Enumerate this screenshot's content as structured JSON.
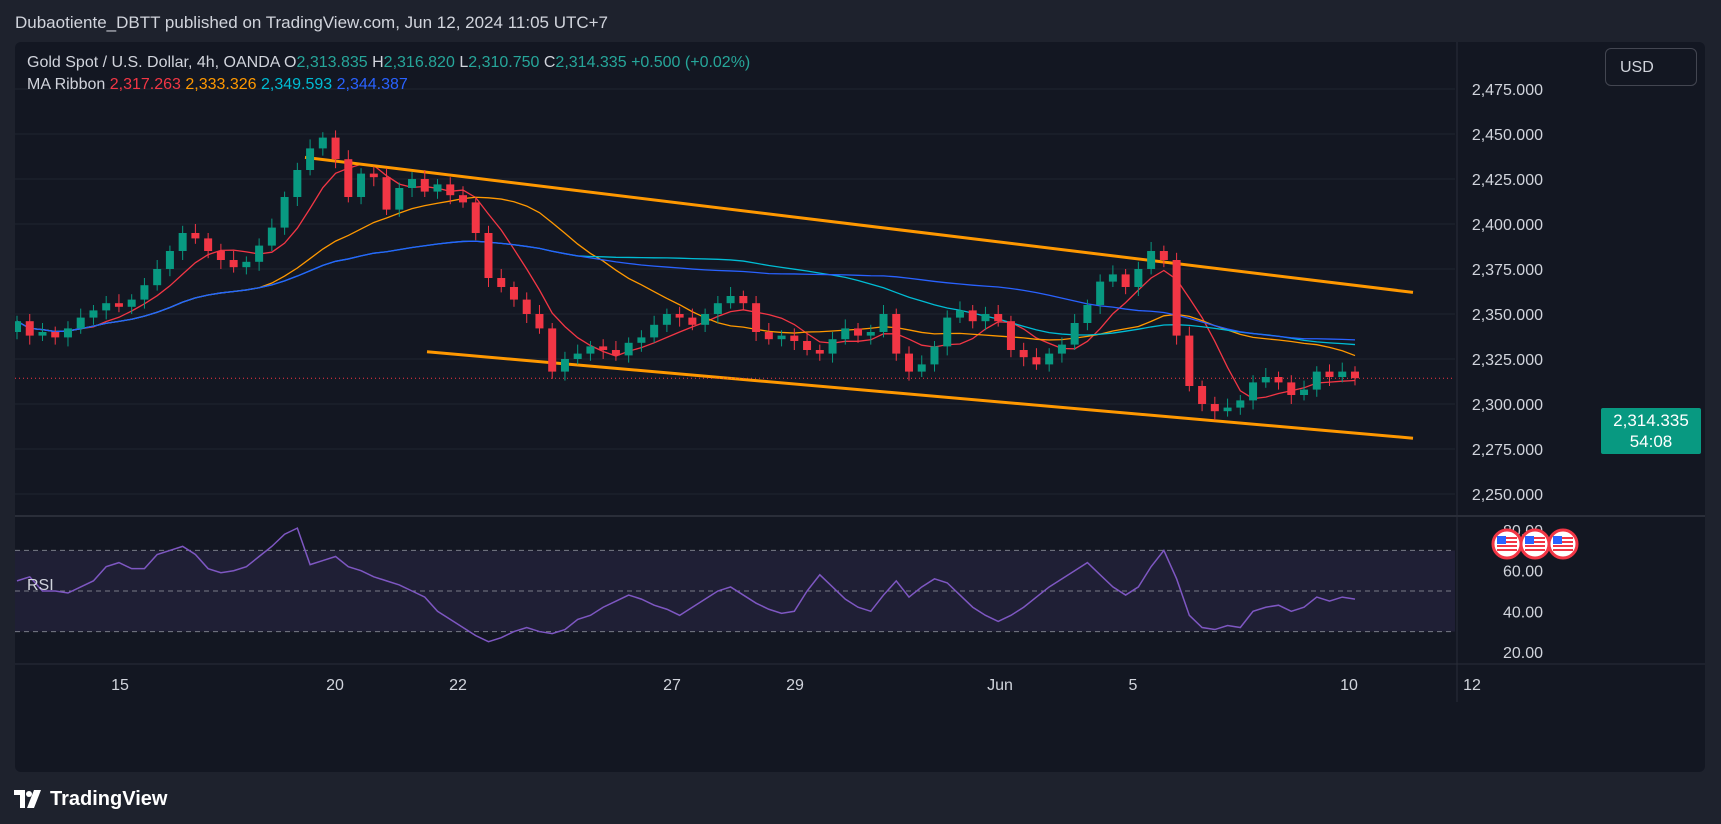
{
  "header": {
    "publisher_line": "Dubaotiente_DBTT published on TradingView.com, Jun 12, 2024 11:05 UTC+7"
  },
  "legend": {
    "symbol": "Gold Spot / U.S. Dollar, 4h, OANDA",
    "o_label": "O",
    "o_value": "2,313.835",
    "h_label": "H",
    "h_value": "2,316.820",
    "l_label": "L",
    "l_value": "2,310.750",
    "c_label": "C",
    "c_value": "2,314.335",
    "change": "+0.500 (+0.02%)",
    "ma_label": "MA Ribbon",
    "ma_values": [
      "2,317.263",
      "2,333.326",
      "2,349.593",
      "2,344.387"
    ]
  },
  "currency_button": "USD",
  "last_price": {
    "value": "2,314.335",
    "countdown": "54:08"
  },
  "rsi_label": "RSI",
  "footer": {
    "brand": "TradingView"
  },
  "colors": {
    "up": "#089981",
    "down": "#f23645",
    "ma1": "#f23645",
    "ma2": "#ff9800",
    "ma3": "#00bcd4",
    "ma4": "#2962ff",
    "trendline": "#ff9800",
    "rsi": "#7e57c2"
  },
  "icons": [
    "us-flag-event-icon",
    "us-flag-event-icon",
    "us-flag-event-icon",
    "tradingview-logo-icon"
  ],
  "chart_data": [
    {
      "type": "candlestick",
      "title": "Gold Spot / U.S. Dollar, 4h, OANDA",
      "x_tick_labels": [
        "15",
        "20",
        "22",
        "27",
        "29",
        "Jun",
        "5",
        "10",
        "12"
      ],
      "y_tick_labels": [
        "2,475.000",
        "2,450.000",
        "2,425.000",
        "2,400.000",
        "2,375.000",
        "2,350.000",
        "2,325.000",
        "2,300.000",
        "2,275.000",
        "2,250.000"
      ],
      "ylim": [
        2240,
        2490
      ],
      "candles_close": [
        2346,
        2338,
        2340,
        2337,
        2342,
        2348,
        2352,
        2356,
        2354,
        2358,
        2366,
        2375,
        2385,
        2395,
        2392,
        2385,
        2380,
        2376,
        2379,
        2388,
        2398,
        2415,
        2430,
        2442,
        2448,
        2436,
        2415,
        2428,
        2426,
        2408,
        2420,
        2425,
        2418,
        2422,
        2416,
        2412,
        2395,
        2370,
        2365,
        2358,
        2350,
        2342,
        2318,
        2325,
        2328,
        2332,
        2330,
        2327,
        2334,
        2337,
        2344,
        2350,
        2348,
        2344,
        2350,
        2356,
        2360,
        2356,
        2340,
        2336,
        2338,
        2335,
        2330,
        2328,
        2336,
        2342,
        2338,
        2340,
        2350,
        2328,
        2318,
        2322,
        2332,
        2348,
        2352,
        2346,
        2350,
        2346,
        2330,
        2326,
        2322,
        2328,
        2333,
        2345,
        2355,
        2368,
        2372,
        2365,
        2375,
        2385,
        2380,
        2338,
        2310,
        2300,
        2296,
        2298,
        2302,
        2312,
        2315,
        2312,
        2305,
        2308,
        2318,
        2315,
        2318,
        2314.335
      ],
      "ma_ribbon": [
        {
          "name": "MA 1",
          "last": 2317.263
        },
        {
          "name": "MA 2",
          "last": 2333.326
        },
        {
          "name": "MA 3",
          "last": 2349.593
        },
        {
          "name": "MA 4",
          "last": 2344.387
        }
      ],
      "trendlines": [
        {
          "name": "upper channel",
          "from": 2437,
          "to": 2362
        },
        {
          "name": "lower channel",
          "from": 2329,
          "to": 2281
        }
      ]
    },
    {
      "type": "line",
      "title": "RSI",
      "y_tick_labels": [
        "80.00",
        "60.00",
        "40.00",
        "20.00"
      ],
      "ylim": [
        15,
        85
      ],
      "bands": [
        30,
        50,
        70
      ],
      "values": [
        55,
        57,
        50,
        50,
        49,
        52,
        55,
        62,
        64,
        61,
        61,
        68,
        70,
        72,
        68,
        61,
        59,
        60,
        62,
        67,
        72,
        78,
        81,
        63,
        65,
        67,
        62,
        60,
        57,
        55,
        53,
        50,
        47,
        40,
        36,
        32,
        28,
        25,
        27,
        30,
        32,
        30,
        29,
        31,
        36,
        38,
        42,
        45,
        48,
        46,
        43,
        41,
        38,
        42,
        46,
        50,
        52,
        48,
        44,
        41,
        39,
        40,
        50,
        58,
        52,
        46,
        42,
        40,
        48,
        55,
        47,
        52,
        56,
        54,
        48,
        42,
        38,
        35,
        38,
        42,
        47,
        52,
        56,
        60,
        64,
        58,
        52,
        48,
        52,
        62,
        70,
        56,
        38,
        32,
        31,
        33,
        32,
        40,
        42,
        43,
        40,
        42,
        47,
        45,
        47,
        46
      ]
    }
  ]
}
